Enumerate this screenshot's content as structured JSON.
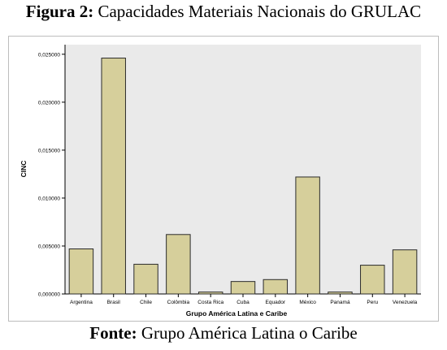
{
  "figure": {
    "title_prefix": "Figura 2:",
    "title_text": " Capacidades Materiais Nacionais do GRULAC"
  },
  "source": {
    "prefix": "Fonte:",
    "text": " Grupo América Latina o Caribe"
  },
  "colors": {
    "plot_bg": "#eaeaea",
    "bar_fill": "#d6cf9b",
    "bar_stroke": "#2b2b2b"
  },
  "chart_data": {
    "type": "bar",
    "title": "",
    "xlabel": "Grupo América Latina e Caribe",
    "ylabel": "CINC",
    "ylim": [
      0,
      0.026
    ],
    "yticks": [
      0,
      0.005,
      0.01,
      0.015,
      0.02,
      0.025
    ],
    "ytick_labels": [
      "0,000000",
      "0,005000",
      "0,010000",
      "0,015000",
      "0,020000",
      "0,025000"
    ],
    "categories": [
      "Argentina",
      "Brasil",
      "Chile",
      "Colômbia",
      "Costa Rica",
      "Cuba",
      "Equador",
      "México",
      "Panamá",
      "Peru",
      "Venezuela"
    ],
    "values": [
      0.0047,
      0.0246,
      0.0031,
      0.0062,
      0.0002,
      0.0013,
      0.0015,
      0.0122,
      0.0002,
      0.003,
      0.0046
    ],
    "grid": false,
    "legend": "none"
  }
}
